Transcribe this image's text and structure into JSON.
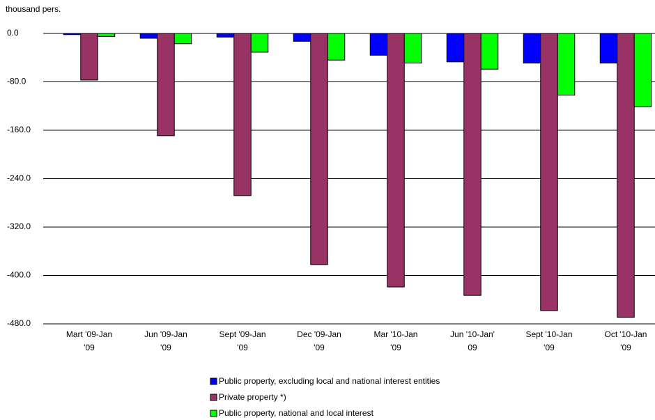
{
  "chart_data": {
    "type": "bar",
    "y_label": "thousand pers.",
    "categories": [
      [
        "Mart '09-Jan",
        "'09"
      ],
      [
        "Jun '09-Jan",
        "'09"
      ],
      [
        "Sept '09-Jan",
        "'09"
      ],
      [
        "Dec '09-Jan",
        "'09"
      ],
      [
        "Mar '10-Jan",
        "'09"
      ],
      [
        "Jun '10-Jan'",
        "09"
      ],
      [
        "Sept '10-Jan",
        "'09"
      ],
      [
        "Oct '10-Jan",
        "'09"
      ]
    ],
    "series": [
      {
        "name": "Public property, excluding local and national interest entities",
        "color": "#0000ff",
        "values": [
          -2,
          -8,
          -6,
          -13,
          -36,
          -47,
          -49,
          -49
        ]
      },
      {
        "name": "Private property *)",
        "color": "#993366",
        "values": [
          -77,
          -169,
          -268,
          -382,
          -419,
          -433,
          -458,
          -469
        ]
      },
      {
        "name": "Public property, national and local interest",
        "color": "#00ff00",
        "values": [
          -5,
          -17,
          -31,
          -44,
          -49,
          -59,
          -102,
          -121
        ]
      }
    ],
    "ylim": [
      -480,
      0
    ],
    "yticks": [
      {
        "value": 0,
        "label": "0.0"
      },
      {
        "value": -80,
        "label": "-80.0"
      },
      {
        "value": -160,
        "label": "-160.0"
      },
      {
        "value": -240,
        "label": "-240.0"
      },
      {
        "value": -320,
        "label": "-320.0"
      },
      {
        "value": -400,
        "label": "-400.0"
      },
      {
        "value": -480,
        "label": "-480.0"
      }
    ],
    "grid": true
  }
}
